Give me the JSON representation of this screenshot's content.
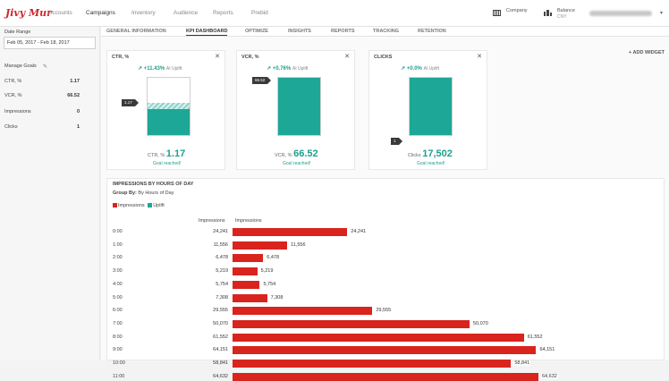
{
  "app": {
    "logo": "Jivy Mur"
  },
  "nav": [
    "Accounts",
    "Campaigns",
    "Inventory",
    "Audience",
    "Reports",
    "Prebid"
  ],
  "account": {
    "company_label": "Company",
    "balance_label": "Balance",
    "balance_sub": "CNY"
  },
  "sidebar": {
    "date_range_label": "Date Range",
    "date_range_value": "Feb 05, 2017 - Feb 18, 2017",
    "manage_goals_label": "Manage Goals",
    "goals": [
      {
        "name": "CTR, %",
        "value": "1.17"
      },
      {
        "name": "VCR, %",
        "value": "66.52"
      },
      {
        "name": "Impressions",
        "value": "0"
      },
      {
        "name": "Clicks",
        "value": "1"
      }
    ]
  },
  "tabs": [
    "GENERAL INFORMATION",
    "KPI DASHBOARD",
    "OPTIMIZE",
    "INSIGHTS",
    "REPORTS",
    "TRACKING",
    "RETENTION"
  ],
  "add_widget": "+ ADD WIDGET",
  "kpi_cards": [
    {
      "title": "CTR, %",
      "uplift": "+11.43%",
      "uplift_label": "AI Uplift",
      "marker": "1.17",
      "fill": 0.56,
      "kpi_label": "CTR, %",
      "kpi_value": "1.17",
      "status": "Goal reached!"
    },
    {
      "title": "VCR, %",
      "uplift": "+0.76%",
      "uplift_label": "AI Uplift",
      "marker": "66.52",
      "fill": 1.0,
      "kpi_label": "VCR, %",
      "kpi_value": "66.52",
      "status": "Goal reached!"
    },
    {
      "title": "CLICKS",
      "uplift": "+0.0%",
      "uplift_label": "AI Uplift",
      "marker": "1",
      "fill": 1.0,
      "kpi_label": "Clicks",
      "kpi_value": "17,502",
      "status": "Goal reached!"
    }
  ],
  "impressions": {
    "title": "IMPRESSIONS BY HOURS OF DAY",
    "group_by_label": "Group By:",
    "group_by_value": "By Hours of Day",
    "legend": [
      {
        "name": "Impressions",
        "color": "#d9241e"
      },
      {
        "name": "Uplift",
        "color": "#1ca796"
      }
    ],
    "col_value": "Impressions",
    "col_bar": "Impressions"
  },
  "chart_data": {
    "type": "bar",
    "orientation": "horizontal",
    "categories": [
      "0:00",
      "1:00",
      "2:00",
      "3:00",
      "4:00",
      "5:00",
      "6:00",
      "7:00",
      "8:00",
      "9:00",
      "10:00",
      "11:00"
    ],
    "value_labels": [
      "24,241",
      "11,556",
      "6,478",
      "5,219",
      "5,754",
      "7,308",
      "29,555",
      "50,070",
      "61,552",
      "64,151",
      "58,841",
      "64,632"
    ],
    "values": [
      24241,
      11556,
      6478,
      5219,
      5754,
      7308,
      29555,
      50070,
      61552,
      64151,
      58841,
      64632
    ],
    "series": [
      {
        "name": "Impressions",
        "values": [
          24241,
          11556,
          6478,
          5219,
          5754,
          7308,
          29555,
          50070,
          61552,
          64151,
          58841,
          64632
        ]
      }
    ],
    "xlim": [
      0,
      64632
    ]
  }
}
